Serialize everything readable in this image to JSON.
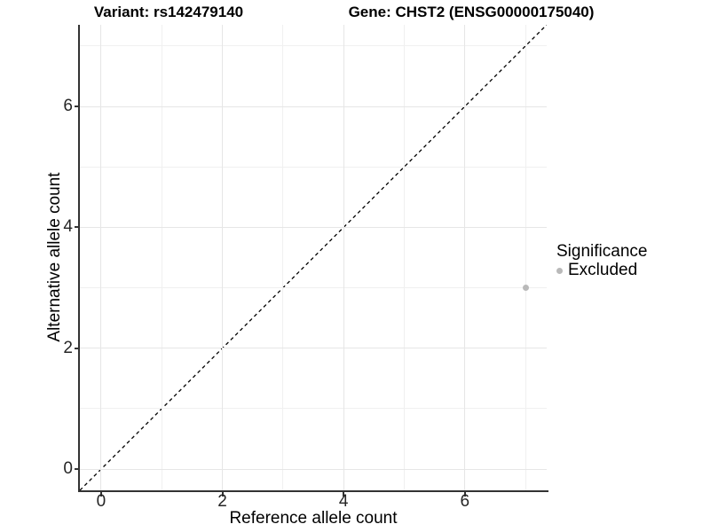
{
  "chart_data": {
    "type": "scatter",
    "title_left": "Variant: rs142479140",
    "title_right": "Gene: CHST2 (ENSG00000175040)",
    "xlabel": "Reference allele count",
    "ylabel": "Alternative allele count",
    "xlim": [
      -0.35,
      7.35
    ],
    "ylim": [
      -0.35,
      7.35
    ],
    "major_ticks": [
      0,
      2,
      4,
      6
    ],
    "minor_gridlines": [
      1,
      3,
      5,
      7
    ],
    "grid": "on",
    "points": [
      {
        "x": 7,
        "y": 3,
        "series": "Excluded"
      }
    ],
    "reference_line": {
      "type": "identity",
      "style": "dashed",
      "color": "#000000"
    },
    "legend": {
      "title": "Significance",
      "position": "right",
      "entries": [
        {
          "label": "Excluded",
          "color": "#b9b9b9"
        }
      ]
    }
  },
  "colors": {
    "background": "#ffffff",
    "axis_line": "#333333",
    "grid_major": "#e6e6e6",
    "grid_minor": "#f0f0f0",
    "point_excluded": "#b9b9b9",
    "text": "#000000",
    "tick_text": "#262626"
  }
}
